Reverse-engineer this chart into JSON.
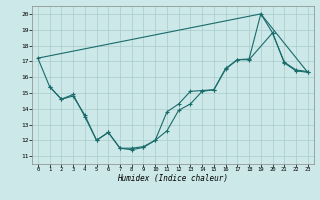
{
  "title": "",
  "xlabel": "Humidex (Indice chaleur)",
  "xlim": [
    -0.5,
    23.5
  ],
  "ylim": [
    10.5,
    20.5
  ],
  "yticks": [
    11,
    12,
    13,
    14,
    15,
    16,
    17,
    18,
    19,
    20
  ],
  "xticks": [
    0,
    1,
    2,
    3,
    4,
    5,
    6,
    7,
    8,
    9,
    10,
    11,
    12,
    13,
    14,
    15,
    16,
    17,
    18,
    19,
    20,
    21,
    22,
    23
  ],
  "bg_color": "#cce8e8",
  "line_color": "#1a6b6b",
  "grid_color": "#aacccc",
  "line1_x": [
    0,
    19,
    23
  ],
  "line1_y": [
    17.2,
    20.0,
    16.3
  ],
  "line2_x": [
    0,
    1,
    2,
    3,
    4,
    5,
    6,
    7,
    8,
    9,
    10,
    11,
    12,
    13,
    14,
    15,
    16,
    17,
    18,
    20,
    21,
    22,
    23
  ],
  "line2_y": [
    17.2,
    15.4,
    14.6,
    14.8,
    13.6,
    12.0,
    12.5,
    11.5,
    11.5,
    11.6,
    12.0,
    12.6,
    13.9,
    14.3,
    15.1,
    15.2,
    16.5,
    17.1,
    17.1,
    18.8,
    16.9,
    16.4,
    16.3
  ],
  "line3_x": [
    1,
    2,
    3,
    4,
    5,
    6,
    7,
    8,
    9,
    10,
    11,
    12,
    13,
    14,
    15,
    16,
    17,
    18,
    19,
    20,
    21,
    22,
    23
  ],
  "line3_y": [
    15.4,
    14.6,
    14.9,
    13.5,
    12.0,
    12.5,
    11.5,
    11.4,
    11.55,
    12.0,
    13.8,
    14.3,
    15.1,
    15.15,
    15.2,
    16.55,
    17.1,
    17.15,
    20.0,
    18.8,
    16.95,
    16.45,
    16.35
  ]
}
